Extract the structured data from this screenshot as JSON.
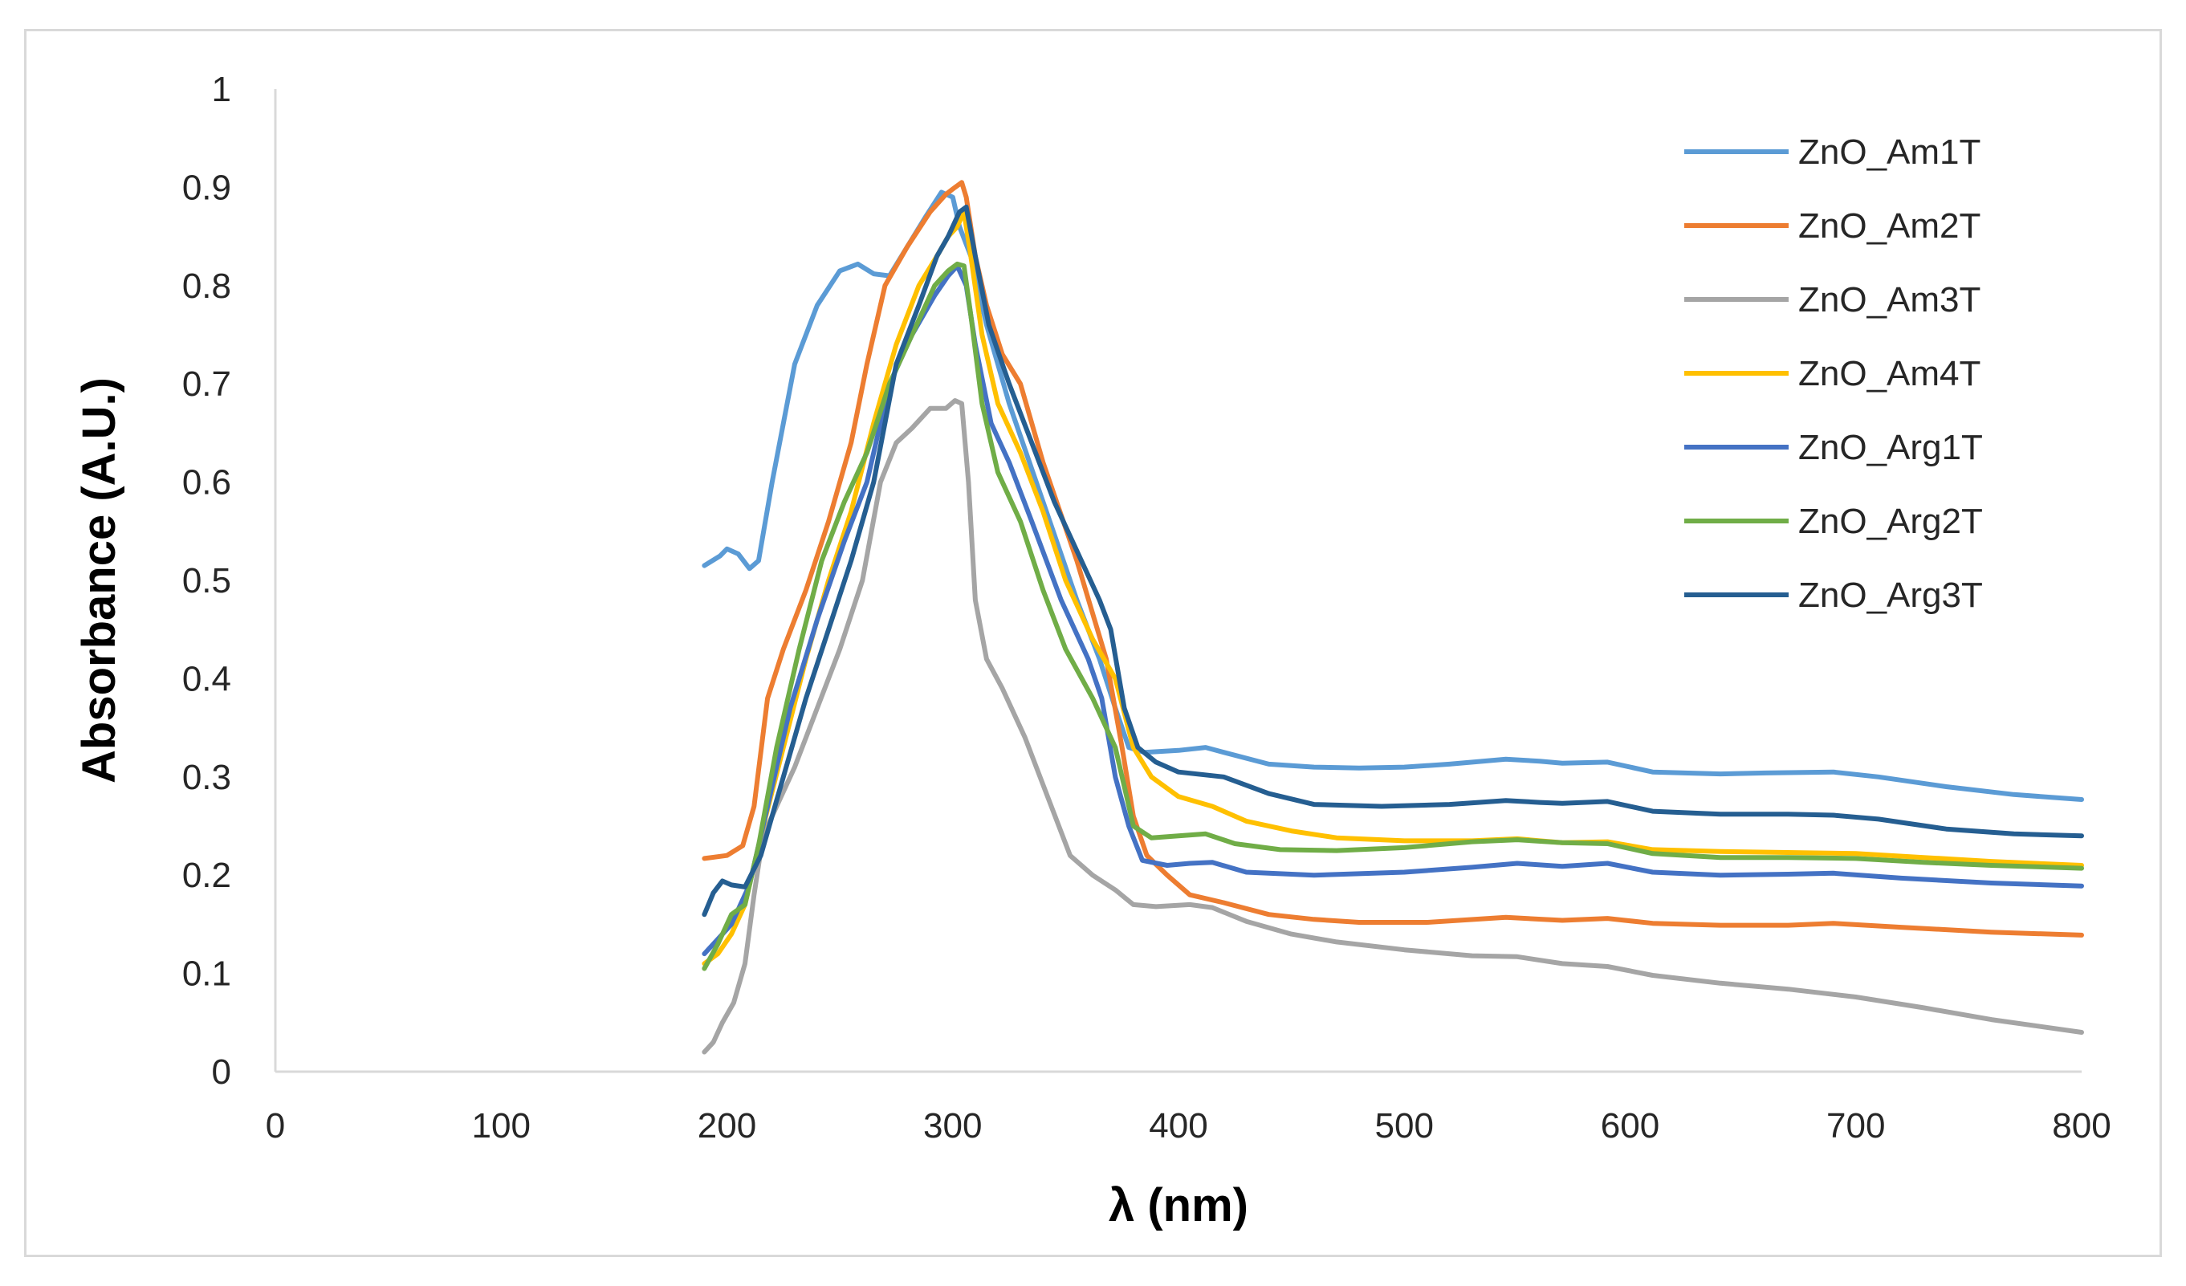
{
  "chart_data": {
    "type": "line",
    "title": "",
    "xlabel": "λ (nm)",
    "ylabel": "Absorbance (A.U.)",
    "xlim": [
      0,
      800
    ],
    "ylim": [
      0,
      1
    ],
    "xticks": [
      "0",
      "100",
      "200",
      "300",
      "400",
      "500",
      "600",
      "700",
      "800"
    ],
    "yticks": [
      "0",
      "0.1",
      "0.2",
      "0.3",
      "0.4",
      "0.5",
      "0.6",
      "0.7",
      "0.8",
      "0.9",
      "1"
    ],
    "grid": false,
    "legend": "right",
    "series": [
      {
        "name": "ZnO_Am1T",
        "color": "#5b9bd5",
        "points": [
          [
            190,
            0.515
          ],
          [
            197,
            0.525
          ],
          [
            200,
            0.532
          ],
          [
            205,
            0.527
          ],
          [
            210,
            0.512
          ],
          [
            214,
            0.52
          ],
          [
            220,
            0.6
          ],
          [
            230,
            0.72
          ],
          [
            240,
            0.78
          ],
          [
            250,
            0.815
          ],
          [
            258,
            0.822
          ],
          [
            265,
            0.812
          ],
          [
            272,
            0.81
          ],
          [
            280,
            0.84
          ],
          [
            288,
            0.87
          ],
          [
            295,
            0.895
          ],
          [
            300,
            0.89
          ],
          [
            303,
            0.86
          ],
          [
            308,
            0.83
          ],
          [
            315,
            0.76
          ],
          [
            325,
            0.68
          ],
          [
            340,
            0.58
          ],
          [
            355,
            0.48
          ],
          [
            365,
            0.42
          ],
          [
            372,
            0.37
          ],
          [
            378,
            0.33
          ],
          [
            385,
            0.325
          ],
          [
            400,
            0.327
          ],
          [
            412,
            0.33
          ],
          [
            420,
            0.325
          ],
          [
            440,
            0.313
          ],
          [
            460,
            0.31
          ],
          [
            480,
            0.309
          ],
          [
            500,
            0.31
          ],
          [
            520,
            0.313
          ],
          [
            545,
            0.318
          ],
          [
            560,
            0.316
          ],
          [
            570,
            0.314
          ],
          [
            590,
            0.315
          ],
          [
            610,
            0.305
          ],
          [
            640,
            0.303
          ],
          [
            660,
            0.304
          ],
          [
            690,
            0.305
          ],
          [
            710,
            0.3
          ],
          [
            740,
            0.29
          ],
          [
            770,
            0.282
          ],
          [
            800,
            0.277
          ]
        ]
      },
      {
        "name": "ZnO_Am2T",
        "color": "#ed7d31",
        "points": [
          [
            190,
            0.217
          ],
          [
            200,
            0.22
          ],
          [
            207,
            0.23
          ],
          [
            212,
            0.27
          ],
          [
            218,
            0.38
          ],
          [
            225,
            0.43
          ],
          [
            235,
            0.49
          ],
          [
            245,
            0.56
          ],
          [
            255,
            0.64
          ],
          [
            262,
            0.72
          ],
          [
            270,
            0.8
          ],
          [
            280,
            0.84
          ],
          [
            290,
            0.875
          ],
          [
            297,
            0.893
          ],
          [
            301,
            0.9
          ],
          [
            304,
            0.905
          ],
          [
            306,
            0.89
          ],
          [
            310,
            0.83
          ],
          [
            315,
            0.78
          ],
          [
            322,
            0.73
          ],
          [
            330,
            0.7
          ],
          [
            340,
            0.62
          ],
          [
            355,
            0.52
          ],
          [
            368,
            0.42
          ],
          [
            375,
            0.33
          ],
          [
            380,
            0.26
          ],
          [
            386,
            0.22
          ],
          [
            395,
            0.2
          ],
          [
            405,
            0.18
          ],
          [
            420,
            0.172
          ],
          [
            440,
            0.16
          ],
          [
            460,
            0.155
          ],
          [
            480,
            0.152
          ],
          [
            510,
            0.152
          ],
          [
            545,
            0.157
          ],
          [
            570,
            0.154
          ],
          [
            590,
            0.156
          ],
          [
            610,
            0.151
          ],
          [
            640,
            0.149
          ],
          [
            670,
            0.149
          ],
          [
            690,
            0.151
          ],
          [
            720,
            0.147
          ],
          [
            760,
            0.142
          ],
          [
            800,
            0.139
          ]
        ]
      },
      {
        "name": "ZnO_Am3T",
        "color": "#a5a5a5",
        "points": [
          [
            190,
            0.02
          ],
          [
            194,
            0.03
          ],
          [
            198,
            0.05
          ],
          [
            203,
            0.07
          ],
          [
            208,
            0.11
          ],
          [
            212,
            0.18
          ],
          [
            216,
            0.24
          ],
          [
            222,
            0.27
          ],
          [
            230,
            0.31
          ],
          [
            240,
            0.37
          ],
          [
            250,
            0.43
          ],
          [
            260,
            0.5
          ],
          [
            268,
            0.6
          ],
          [
            275,
            0.64
          ],
          [
            282,
            0.655
          ],
          [
            290,
            0.675
          ],
          [
            297,
            0.675
          ],
          [
            301,
            0.683
          ],
          [
            304,
            0.68
          ],
          [
            307,
            0.6
          ],
          [
            310,
            0.48
          ],
          [
            315,
            0.42
          ],
          [
            322,
            0.39
          ],
          [
            332,
            0.34
          ],
          [
            342,
            0.28
          ],
          [
            352,
            0.22
          ],
          [
            362,
            0.2
          ],
          [
            372,
            0.185
          ],
          [
            380,
            0.17
          ],
          [
            390,
            0.168
          ],
          [
            405,
            0.17
          ],
          [
            415,
            0.167
          ],
          [
            430,
            0.153
          ],
          [
            450,
            0.14
          ],
          [
            470,
            0.132
          ],
          [
            500,
            0.124
          ],
          [
            530,
            0.118
          ],
          [
            550,
            0.117
          ],
          [
            570,
            0.11
          ],
          [
            590,
            0.107
          ],
          [
            610,
            0.098
          ],
          [
            640,
            0.09
          ],
          [
            670,
            0.084
          ],
          [
            700,
            0.076
          ],
          [
            730,
            0.065
          ],
          [
            760,
            0.053
          ],
          [
            800,
            0.04
          ]
        ]
      },
      {
        "name": "ZnO_Am4T",
        "color": "#ffc000",
        "points": [
          [
            190,
            0.11
          ],
          [
            196,
            0.12
          ],
          [
            202,
            0.14
          ],
          [
            208,
            0.17
          ],
          [
            215,
            0.24
          ],
          [
            225,
            0.33
          ],
          [
            235,
            0.42
          ],
          [
            245,
            0.5
          ],
          [
            255,
            0.57
          ],
          [
            265,
            0.66
          ],
          [
            275,
            0.74
          ],
          [
            285,
            0.8
          ],
          [
            293,
            0.83
          ],
          [
            298,
            0.85
          ],
          [
            302,
            0.86
          ],
          [
            305,
            0.875
          ],
          [
            308,
            0.83
          ],
          [
            313,
            0.75
          ],
          [
            320,
            0.68
          ],
          [
            330,
            0.63
          ],
          [
            340,
            0.57
          ],
          [
            350,
            0.5
          ],
          [
            362,
            0.44
          ],
          [
            372,
            0.4
          ],
          [
            380,
            0.33
          ],
          [
            388,
            0.3
          ],
          [
            400,
            0.28
          ],
          [
            415,
            0.27
          ],
          [
            430,
            0.255
          ],
          [
            450,
            0.245
          ],
          [
            470,
            0.238
          ],
          [
            500,
            0.235
          ],
          [
            530,
            0.235
          ],
          [
            550,
            0.237
          ],
          [
            570,
            0.233
          ],
          [
            590,
            0.234
          ],
          [
            610,
            0.226
          ],
          [
            640,
            0.224
          ],
          [
            670,
            0.223
          ],
          [
            700,
            0.222
          ],
          [
            730,
            0.218
          ],
          [
            760,
            0.214
          ],
          [
            800,
            0.21
          ]
        ]
      },
      {
        "name": "ZnO_Arg1T",
        "color": "#4472c4",
        "points": [
          [
            190,
            0.12
          ],
          [
            196,
            0.135
          ],
          [
            202,
            0.15
          ],
          [
            210,
            0.19
          ],
          [
            218,
            0.27
          ],
          [
            228,
            0.37
          ],
          [
            240,
            0.46
          ],
          [
            252,
            0.54
          ],
          [
            262,
            0.6
          ],
          [
            272,
            0.7
          ],
          [
            282,
            0.75
          ],
          [
            292,
            0.79
          ],
          [
            298,
            0.81
          ],
          [
            302,
            0.82
          ],
          [
            306,
            0.8
          ],
          [
            310,
            0.74
          ],
          [
            317,
            0.66
          ],
          [
            325,
            0.62
          ],
          [
            335,
            0.56
          ],
          [
            348,
            0.48
          ],
          [
            360,
            0.42
          ],
          [
            366,
            0.38
          ],
          [
            372,
            0.3
          ],
          [
            378,
            0.25
          ],
          [
            384,
            0.215
          ],
          [
            395,
            0.21
          ],
          [
            405,
            0.212
          ],
          [
            415,
            0.213
          ],
          [
            430,
            0.203
          ],
          [
            460,
            0.2
          ],
          [
            500,
            0.203
          ],
          [
            530,
            0.208
          ],
          [
            550,
            0.212
          ],
          [
            570,
            0.209
          ],
          [
            590,
            0.212
          ],
          [
            610,
            0.203
          ],
          [
            640,
            0.2
          ],
          [
            670,
            0.201
          ],
          [
            690,
            0.202
          ],
          [
            720,
            0.197
          ],
          [
            760,
            0.192
          ],
          [
            800,
            0.189
          ]
        ]
      },
      {
        "name": "ZnO_Arg2T",
        "color": "#70ad47",
        "points": [
          [
            190,
            0.105
          ],
          [
            196,
            0.13
          ],
          [
            202,
            0.16
          ],
          [
            208,
            0.17
          ],
          [
            214,
            0.23
          ],
          [
            222,
            0.33
          ],
          [
            232,
            0.43
          ],
          [
            242,
            0.52
          ],
          [
            252,
            0.58
          ],
          [
            262,
            0.63
          ],
          [
            272,
            0.7
          ],
          [
            282,
            0.75
          ],
          [
            292,
            0.8
          ],
          [
            298,
            0.815
          ],
          [
            302,
            0.822
          ],
          [
            305,
            0.82
          ],
          [
            308,
            0.77
          ],
          [
            313,
            0.68
          ],
          [
            320,
            0.61
          ],
          [
            330,
            0.56
          ],
          [
            340,
            0.49
          ],
          [
            350,
            0.43
          ],
          [
            362,
            0.38
          ],
          [
            372,
            0.33
          ],
          [
            380,
            0.25
          ],
          [
            388,
            0.238
          ],
          [
            400,
            0.24
          ],
          [
            412,
            0.242
          ],
          [
            425,
            0.232
          ],
          [
            445,
            0.226
          ],
          [
            470,
            0.225
          ],
          [
            500,
            0.228
          ],
          [
            530,
            0.234
          ],
          [
            550,
            0.236
          ],
          [
            570,
            0.233
          ],
          [
            590,
            0.232
          ],
          [
            610,
            0.222
          ],
          [
            640,
            0.218
          ],
          [
            670,
            0.218
          ],
          [
            700,
            0.217
          ],
          [
            730,
            0.213
          ],
          [
            760,
            0.21
          ],
          [
            800,
            0.207
          ]
        ]
      },
      {
        "name": "ZnO_Arg3T",
        "color": "#255e91",
        "points": [
          [
            190,
            0.16
          ],
          [
            194,
            0.182
          ],
          [
            198,
            0.194
          ],
          [
            202,
            0.19
          ],
          [
            208,
            0.188
          ],
          [
            215,
            0.22
          ],
          [
            225,
            0.3
          ],
          [
            235,
            0.38
          ],
          [
            245,
            0.45
          ],
          [
            255,
            0.52
          ],
          [
            265,
            0.6
          ],
          [
            275,
            0.72
          ],
          [
            285,
            0.78
          ],
          [
            293,
            0.83
          ],
          [
            298,
            0.85
          ],
          [
            303,
            0.875
          ],
          [
            306,
            0.88
          ],
          [
            310,
            0.83
          ],
          [
            316,
            0.76
          ],
          [
            325,
            0.7
          ],
          [
            335,
            0.64
          ],
          [
            345,
            0.58
          ],
          [
            355,
            0.53
          ],
          [
            365,
            0.48
          ],
          [
            370,
            0.45
          ],
          [
            376,
            0.37
          ],
          [
            382,
            0.33
          ],
          [
            390,
            0.315
          ],
          [
            400,
            0.305
          ],
          [
            420,
            0.3
          ],
          [
            440,
            0.283
          ],
          [
            460,
            0.272
          ],
          [
            490,
            0.27
          ],
          [
            520,
            0.272
          ],
          [
            545,
            0.276
          ],
          [
            560,
            0.274
          ],
          [
            570,
            0.273
          ],
          [
            590,
            0.275
          ],
          [
            610,
            0.265
          ],
          [
            640,
            0.262
          ],
          [
            670,
            0.262
          ],
          [
            690,
            0.261
          ],
          [
            710,
            0.257
          ],
          [
            740,
            0.247
          ],
          [
            770,
            0.242
          ],
          [
            800,
            0.24
          ]
        ]
      }
    ]
  }
}
